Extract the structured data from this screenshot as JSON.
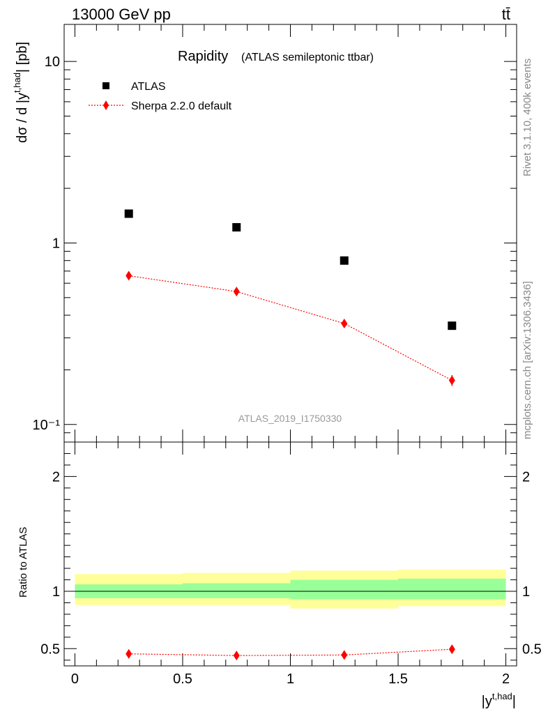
{
  "header": {
    "energy_label": "13000 GeV pp",
    "process_label": "tt̄"
  },
  "chart_data": [
    {
      "type": "scatter",
      "title": "Rapidity",
      "subtitle": "(ATLAS semileptonic ttbar)",
      "ylabel": "dσ / d |y^{t,had}| [pb]",
      "yscale": "log",
      "ylim": [
        0.08,
        16
      ],
      "y_ticks": [
        "10⁻¹",
        "1",
        "10"
      ],
      "legend_position": "top-left",
      "analysis_label": "ATLAS_2019_I1750330",
      "series": [
        {
          "name": "ATLAS",
          "marker": "square",
          "color": "#000000",
          "x": [
            0.25,
            0.75,
            1.25,
            1.75
          ],
          "y": [
            1.45,
            1.22,
            0.8,
            0.35
          ]
        },
        {
          "name": "Sherpa 2.2.0 default",
          "marker": "diamond",
          "line": "dotted",
          "color": "#ff0000",
          "x": [
            0.25,
            0.75,
            1.25,
            1.75
          ],
          "y": [
            0.66,
            0.54,
            0.36,
            0.175
          ],
          "yerr": [
            0.01,
            0.01,
            0.008,
            0.012
          ]
        }
      ]
    },
    {
      "type": "line",
      "ylabel": "Ratio to ATLAS",
      "xlabel": "|y^{t,had}|",
      "ylim": [
        0.35,
        2.3
      ],
      "x_ticks": [
        "0",
        "0.5",
        "1",
        "1.5",
        "2"
      ],
      "y_ticks": [
        "0.5",
        "1",
        "2"
      ],
      "xlim": [
        -0.05,
        2.05
      ],
      "bins": [
        0,
        0.5,
        1,
        1.5,
        2
      ],
      "uncertainty_bands": {
        "yellow_color": "#ffff99",
        "green_color": "#99ff99",
        "yellow": [
          [
            0.88,
            1.15
          ],
          [
            0.88,
            1.16
          ],
          [
            0.85,
            1.18
          ],
          [
            0.87,
            1.19
          ]
        ],
        "green": [
          [
            0.94,
            1.06
          ],
          [
            0.94,
            1.07
          ],
          [
            0.93,
            1.1
          ],
          [
            0.93,
            1.11
          ]
        ]
      },
      "series": [
        {
          "name": "Sherpa 2.2.0 default",
          "color": "#ff0000",
          "x": [
            0.25,
            0.75,
            1.25,
            1.75
          ],
          "y": [
            0.455,
            0.44,
            0.445,
            0.495
          ],
          "yerr": [
            0.01,
            0.01,
            0.012,
            0.025
          ]
        }
      ]
    }
  ],
  "side_labels": {
    "rivet": "Rivet 3.1.10,  400k events",
    "mcplots": "mcplots.cern.ch [arXiv:1306.3436]"
  }
}
